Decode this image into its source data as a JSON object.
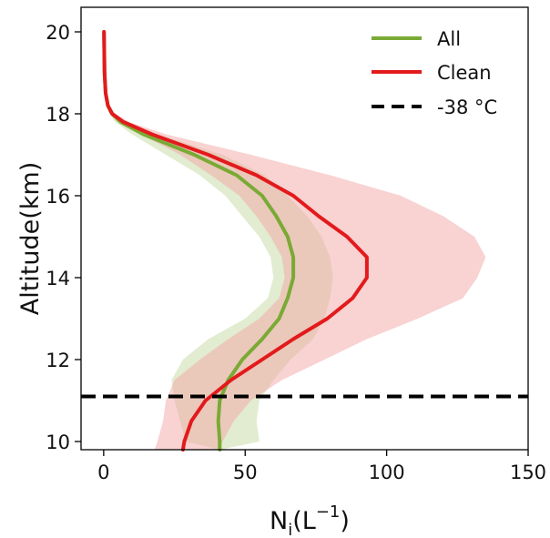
{
  "chart_data": {
    "type": "area",
    "title": "",
    "xlabel_main": "N",
    "xlabel_sub": "i",
    "xlabel_open": "(L",
    "xlabel_sup": "−1",
    "xlabel_close": ")",
    "ylabel": "Altitude(km)",
    "xlim": [
      -8,
      150
    ],
    "ylim": [
      9.8,
      20.6
    ],
    "xticks": [
      0,
      50,
      100,
      150
    ],
    "xtick_labels": [
      "0",
      "50",
      "100",
      "150"
    ],
    "yticks": [
      10,
      12,
      14,
      16,
      18,
      20
    ],
    "ytick_labels": [
      "10",
      "12",
      "14",
      "16",
      "18",
      "20"
    ],
    "legend_position": "top-right",
    "reference_line": {
      "name": "-38 °C",
      "y": 11.1,
      "style": "dashed",
      "color": "#000000"
    },
    "series": [
      {
        "name": "All",
        "color": "#7aaa35",
        "fill_color": "#c9dcaa",
        "y": [
          9.8,
          10,
          10.5,
          11,
          11.5,
          12,
          12.5,
          13,
          13.5,
          14,
          14.5,
          15,
          15.5,
          16,
          16.5,
          17,
          17.5,
          17.8,
          18,
          18.2,
          18.5,
          19,
          20
        ],
        "mean": [
          41,
          41,
          40.5,
          41,
          44,
          49,
          56,
          62,
          65,
          67,
          67,
          65,
          61,
          56,
          47,
          32,
          14,
          6,
          3,
          1.5,
          0.7,
          0.3,
          0.1
        ],
        "lower": [
          41,
          29,
          27,
          25,
          24,
          28,
          37,
          50,
          58,
          60,
          59,
          55,
          49,
          43,
          34,
          22,
          10,
          4,
          2,
          1,
          0.5,
          0.2,
          0.1
        ],
        "upper": [
          41,
          55,
          54,
          55,
          60,
          66,
          74,
          78,
          80,
          81,
          80,
          77,
          72,
          65,
          57,
          42,
          19,
          8,
          4,
          2,
          1,
          0.4,
          0.1
        ]
      },
      {
        "name": "Clean",
        "color": "#e31a1c",
        "fill_color": "#f4a5a5",
        "y": [
          9.8,
          10,
          10.5,
          11,
          11.5,
          12,
          12.5,
          13,
          13.5,
          14,
          14.5,
          15,
          15.5,
          16,
          16.5,
          17,
          17.5,
          17.8,
          18,
          18.2,
          18.5,
          19,
          20
        ],
        "mean": [
          28,
          28.5,
          31,
          36,
          45,
          56,
          67,
          79,
          88,
          93,
          93,
          86,
          76,
          67,
          54,
          37,
          17,
          7,
          3,
          1.5,
          0.7,
          0.3,
          0.1
        ],
        "lower": [
          18,
          19,
          21,
          22,
          25,
          34,
          44,
          55,
          62,
          64,
          63,
          59,
          54,
          48,
          38,
          27,
          13,
          5,
          2,
          1,
          0.5,
          0.2,
          0.1
        ],
        "upper": [
          40,
          42,
          46,
          52,
          63,
          78,
          93,
          111,
          127,
          132,
          135,
          131,
          120,
          105,
          80,
          52,
          22,
          9,
          4,
          2,
          1,
          0.4,
          0.1
        ]
      }
    ]
  }
}
